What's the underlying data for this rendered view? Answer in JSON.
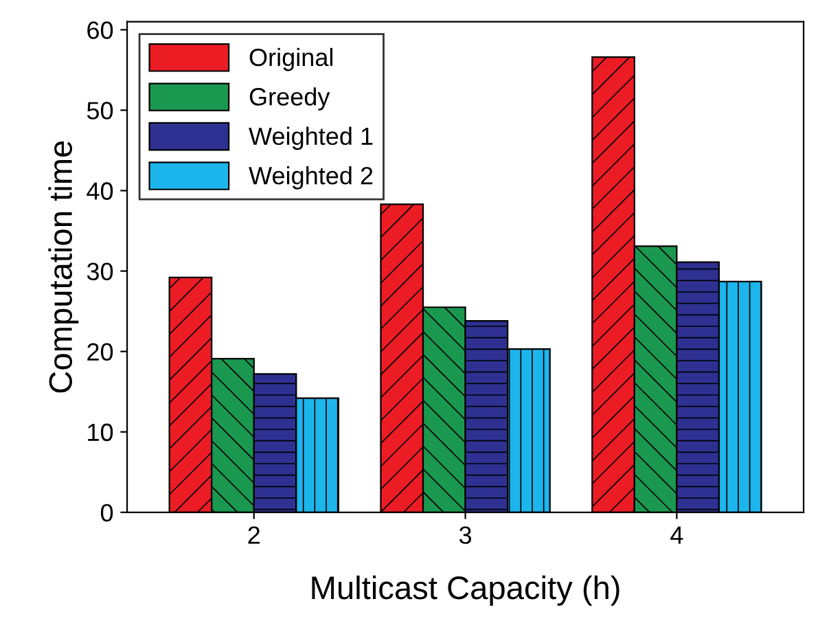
{
  "chart_data": {
    "type": "bar",
    "xlabel": "Multicast Capacity (h)",
    "ylabel": "Computation time",
    "categories": [
      "2",
      "3",
      "4"
    ],
    "series": [
      {
        "name": "Original",
        "color": "#ec1c24",
        "values": [
          29.2,
          38.3,
          56.6
        ]
      },
      {
        "name": "Greedy",
        "color": "#1a9850",
        "values": [
          19.1,
          25.5,
          33.1
        ]
      },
      {
        "name": "Weighted 1",
        "color": "#2e3192",
        "values": [
          17.2,
          23.8,
          31.1
        ]
      },
      {
        "name": "Weighted 2",
        "color": "#1cb5ec",
        "values": [
          14.2,
          20.3,
          28.7
        ]
      }
    ],
    "ylim": [
      0,
      61
    ],
    "yticks": [
      0,
      10,
      20,
      30,
      40,
      50,
      60
    ],
    "legend": "top left",
    "grid": false
  }
}
